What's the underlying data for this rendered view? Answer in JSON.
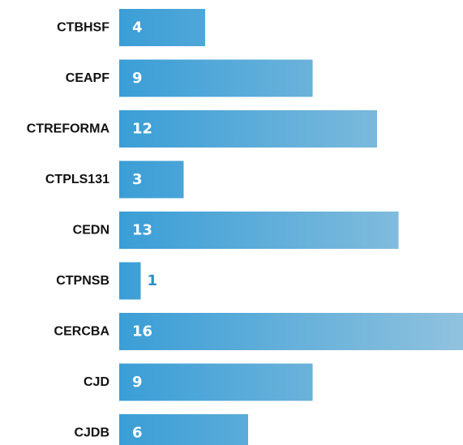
{
  "chart_data": {
    "type": "bar",
    "orientation": "horizontal",
    "categories": [
      "CTBHSF",
      "CEAPF",
      "CTREFORMA",
      "CTPLS131",
      "CEDN",
      "CTPNSB",
      "CERCBA",
      "CJD",
      "CJDB"
    ],
    "values": [
      4,
      9,
      12,
      3,
      13,
      1,
      16,
      9,
      6
    ],
    "color": [
      "#3a9ed6",
      "#90c2de"
    ],
    "xlim": [
      0,
      16
    ]
  }
}
